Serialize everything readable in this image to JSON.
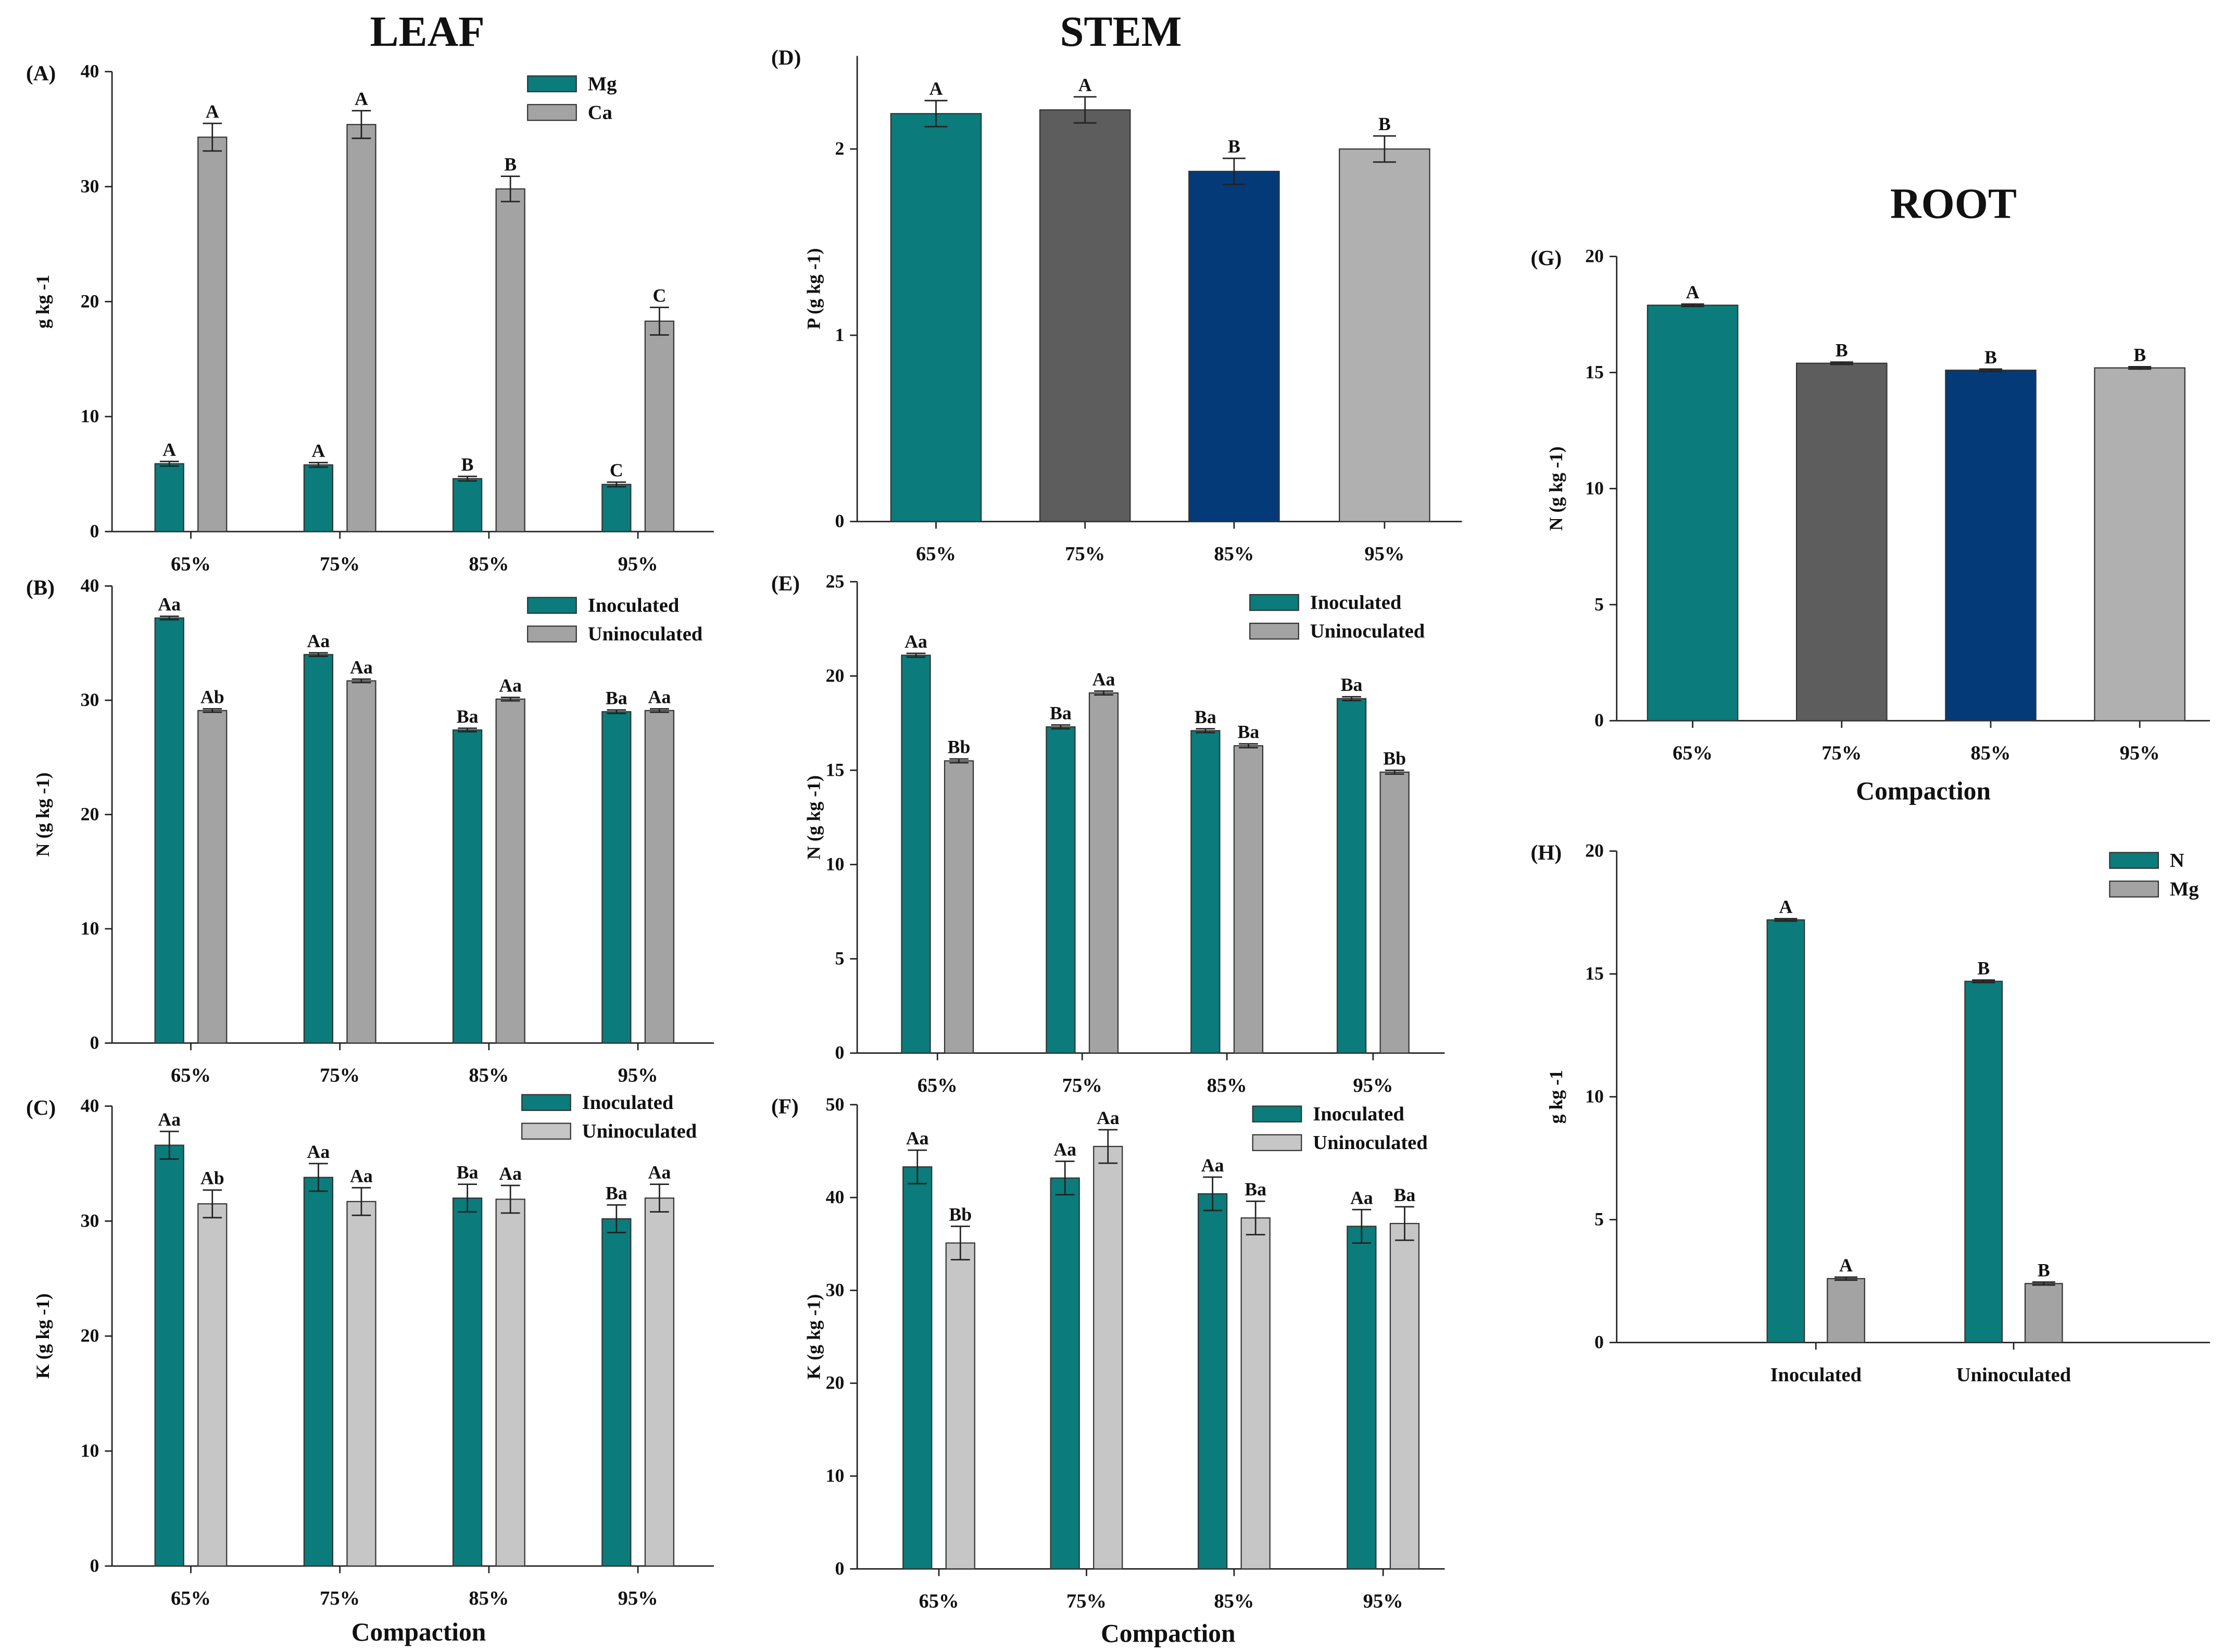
{
  "titles": {
    "leaf": "LEAF",
    "stem": "STEM",
    "root": "ROOT"
  },
  "colors": {
    "teal": "#0b7b7b",
    "gray": "#a3a3a3",
    "light": "#c6c6c6",
    "dark": "#5d5d5d",
    "navy": "#053a79",
    "silver": "#b0b0b0"
  },
  "chart_data": [
    {
      "id": "A",
      "label": "(A)",
      "type": "bar",
      "ylabel": "g kg -1",
      "xlabel": "",
      "ylim": [
        0,
        40
      ],
      "yticks": [
        0,
        10,
        20,
        30,
        40
      ],
      "categories": [
        "65%",
        "75%",
        "85%",
        "95%"
      ],
      "series": [
        {
          "name": "Mg",
          "color": "#0b7b7b",
          "values": [
            5.9,
            5.8,
            4.6,
            4.1
          ],
          "errors": [
            0.2,
            0.2,
            0.2,
            0.2
          ],
          "letters": [
            "A",
            "A",
            "B",
            "C"
          ]
        },
        {
          "name": "Ca",
          "color": "#a3a3a3",
          "values": [
            34.3,
            35.4,
            29.8,
            18.3
          ],
          "errors": [
            1.2,
            1.2,
            1.1,
            1.2
          ],
          "letters": [
            "A",
            "A",
            "B",
            "C"
          ]
        }
      ]
    },
    {
      "id": "B",
      "label": "(B)",
      "type": "bar",
      "ylabel": "N (g kg -1)",
      "xlabel": "",
      "ylim": [
        0,
        40
      ],
      "yticks": [
        0,
        10,
        20,
        30,
        40
      ],
      "categories": [
        "65%",
        "75%",
        "85%",
        "95%"
      ],
      "series": [
        {
          "name": "Inoculated",
          "color": "#0b7b7b",
          "values": [
            37.2,
            34.0,
            27.4,
            29.0
          ],
          "errors": [
            0.15,
            0.15,
            0.15,
            0.15
          ],
          "letters": [
            "Aa",
            "Aa",
            "Ba",
            "Ba"
          ]
        },
        {
          "name": "Uninoculated",
          "color": "#a3a3a3",
          "values": [
            29.1,
            31.7,
            30.1,
            29.1
          ],
          "errors": [
            0.15,
            0.15,
            0.15,
            0.15
          ],
          "letters": [
            "Ab",
            "Aa",
            "Aa",
            "Aa"
          ]
        }
      ]
    },
    {
      "id": "C",
      "label": "(C)",
      "type": "bar",
      "ylabel": "K (g kg -1)",
      "xlabel": "Compaction",
      "ylim": [
        0,
        40
      ],
      "yticks": [
        0,
        10,
        20,
        30,
        40
      ],
      "categories": [
        "65%",
        "75%",
        "85%",
        "95%"
      ],
      "series": [
        {
          "name": "Inoculated",
          "color": "#0b7b7b",
          "values": [
            36.6,
            33.8,
            32.0,
            30.2
          ],
          "errors": [
            1.2,
            1.2,
            1.2,
            1.2
          ],
          "letters": [
            "Aa",
            "Aa",
            "Ba",
            "Ba"
          ]
        },
        {
          "name": "Uninoculated",
          "color": "#c6c6c6",
          "values": [
            31.5,
            31.7,
            31.9,
            32.0
          ],
          "errors": [
            1.2,
            1.2,
            1.2,
            1.2
          ],
          "letters": [
            "Ab",
            "Aa",
            "Aa",
            "Aa"
          ]
        }
      ]
    },
    {
      "id": "D",
      "label": "(D)",
      "type": "bar",
      "ylabel": "P (g kg -1)",
      "xlabel": "",
      "ylim": [
        0,
        2.5
      ],
      "yticks": [
        0,
        1,
        2
      ],
      "categories": [
        "65%",
        "75%",
        "85%",
        "95%"
      ],
      "series": [
        {
          "name": "P",
          "colors": [
            "#0b7b7b",
            "#5d5d5d",
            "#053a79",
            "#b0b0b0"
          ],
          "values": [
            2.19,
            2.21,
            1.88,
            2.0
          ],
          "errors": [
            0.07,
            0.07,
            0.07,
            0.07
          ],
          "letters": [
            "A",
            "A",
            "B",
            "B"
          ]
        }
      ]
    },
    {
      "id": "E",
      "label": "(E)",
      "type": "bar",
      "ylabel": "N (g kg -1)",
      "xlabel": "",
      "ylim": [
        0,
        25
      ],
      "yticks": [
        0,
        5,
        10,
        15,
        20,
        25
      ],
      "categories": [
        "65%",
        "75%",
        "85%",
        "95%"
      ],
      "series": [
        {
          "name": "Inoculated",
          "color": "#0b7b7b",
          "values": [
            21.1,
            17.3,
            17.1,
            18.8
          ],
          "errors": [
            0.1,
            0.1,
            0.1,
            0.1
          ],
          "letters": [
            "Aa",
            "Ba",
            "Ba",
            "Ba"
          ]
        },
        {
          "name": "Uninoculated",
          "color": "#a3a3a3",
          "values": [
            15.5,
            19.1,
            16.3,
            14.9
          ],
          "errors": [
            0.1,
            0.1,
            0.1,
            0.1
          ],
          "letters": [
            "Bb",
            "Aa",
            "Ba",
            "Bb"
          ]
        }
      ]
    },
    {
      "id": "F",
      "label": "(F)",
      "type": "bar",
      "ylabel": "K (g kg -1)",
      "xlabel": "Compaction",
      "ylim": [
        0,
        50
      ],
      "yticks": [
        0,
        10,
        20,
        30,
        40,
        50
      ],
      "categories": [
        "65%",
        "75%",
        "85%",
        "95%"
      ],
      "series": [
        {
          "name": "Inoculated",
          "color": "#0b7b7b",
          "values": [
            43.3,
            42.1,
            40.4,
            36.9
          ],
          "errors": [
            1.8,
            1.8,
            1.8,
            1.8
          ],
          "letters": [
            "Aa",
            "Aa",
            "Aa",
            "Aa"
          ]
        },
        {
          "name": "Uninoculated",
          "color": "#c6c6c6",
          "values": [
            35.1,
            45.5,
            37.8,
            37.2
          ],
          "errors": [
            1.8,
            1.8,
            1.8,
            1.8
          ],
          "letters": [
            "Bb",
            "Aa",
            "Ba",
            "Ba"
          ]
        }
      ]
    },
    {
      "id": "G",
      "label": "(G)",
      "type": "bar",
      "ylabel": "N (g kg -1)",
      "xlabel": "Compaction",
      "ylim": [
        0,
        20
      ],
      "yticks": [
        0,
        5,
        10,
        15,
        20
      ],
      "categories": [
        "65%",
        "75%",
        "85%",
        "95%"
      ],
      "series": [
        {
          "name": "N",
          "colors": [
            "#0b7b7b",
            "#5d5d5d",
            "#053a79",
            "#b0b0b0"
          ],
          "values": [
            17.9,
            15.4,
            15.1,
            15.2
          ],
          "errors": [
            0.05,
            0.05,
            0.05,
            0.05
          ],
          "letters": [
            "A",
            "B",
            "B",
            "B"
          ]
        }
      ]
    },
    {
      "id": "H",
      "label": "(H)",
      "type": "bar",
      "ylabel": "g kg -1",
      "xlabel": "",
      "ylim": [
        0,
        20
      ],
      "yticks": [
        0,
        5,
        10,
        15,
        20
      ],
      "categories": [
        "Inoculated",
        "Uninoculated"
      ],
      "series": [
        {
          "name": "N",
          "color": "#0b7b7b",
          "values": [
            17.2,
            14.7
          ],
          "errors": [
            0.05,
            0.05
          ],
          "letters": [
            "A",
            "B"
          ]
        },
        {
          "name": "Mg",
          "color": "#a3a3a3",
          "values": [
            2.6,
            2.4
          ],
          "errors": [
            0.06,
            0.06
          ],
          "letters": [
            "A",
            "B"
          ]
        }
      ]
    }
  ]
}
